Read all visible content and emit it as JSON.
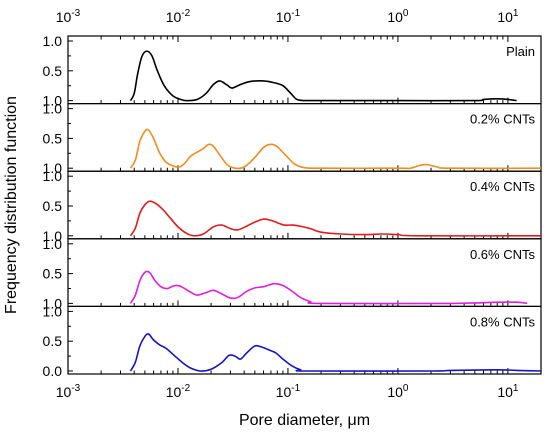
{
  "chart_data": {
    "type": "line",
    "xlabel": "Pore diameter, μm",
    "ylabel": "Frequency distribution function",
    "xscale": "log",
    "xlim": [
      0.001,
      20
    ],
    "ylim": [
      0,
      1.0
    ],
    "x_ticks": [
      {
        "base": "10",
        "exp": "-3"
      },
      {
        "base": "10",
        "exp": "-2"
      },
      {
        "base": "10",
        "exp": "-1"
      },
      {
        "base": "10",
        "exp": "0"
      },
      {
        "base": "10",
        "exp": "1"
      }
    ],
    "y_ticks": [
      "1.0",
      "0.5",
      "1.0"
    ],
    "y_ticks_bottom": [
      "1.0",
      "0.5",
      "0.0"
    ],
    "grid": false,
    "panels": [
      {
        "label": "Plain",
        "color": "#000000",
        "points": [
          [
            0.0037,
            0
          ],
          [
            0.004,
            0.12
          ],
          [
            0.0043,
            0.45
          ],
          [
            0.0047,
            0.74
          ],
          [
            0.0052,
            0.83
          ],
          [
            0.0058,
            0.75
          ],
          [
            0.0065,
            0.5
          ],
          [
            0.0075,
            0.25
          ],
          [
            0.009,
            0.08
          ],
          [
            0.011,
            0.01
          ],
          [
            0.0125,
            0
          ],
          [
            0.015,
            0.02
          ],
          [
            0.018,
            0.12
          ],
          [
            0.021,
            0.27
          ],
          [
            0.024,
            0.33
          ],
          [
            0.028,
            0.26
          ],
          [
            0.031,
            0.21
          ],
          [
            0.036,
            0.26
          ],
          [
            0.045,
            0.32
          ],
          [
            0.06,
            0.33
          ],
          [
            0.075,
            0.3
          ],
          [
            0.09,
            0.25
          ],
          [
            0.105,
            0.13
          ],
          [
            0.118,
            0.03
          ],
          [
            0.13,
            0.005
          ],
          [
            0.16,
            0
          ],
          [
            0.3,
            0
          ],
          [
            1.0,
            0
          ],
          [
            5.0,
            0
          ],
          [
            6.0,
            0.02
          ],
          [
            8.0,
            0.03
          ],
          [
            10,
            0.02
          ],
          [
            12,
            0
          ]
        ]
      },
      {
        "label": "0.2% CNTs",
        "color": "#f28c1c",
        "points": [
          [
            0.0037,
            0
          ],
          [
            0.0041,
            0.14
          ],
          [
            0.0045,
            0.45
          ],
          [
            0.005,
            0.62
          ],
          [
            0.0054,
            0.64
          ],
          [
            0.006,
            0.5
          ],
          [
            0.0068,
            0.26
          ],
          [
            0.0078,
            0.1
          ],
          [
            0.009,
            0.04
          ],
          [
            0.0103,
            0.02
          ],
          [
            0.0115,
            0.08
          ],
          [
            0.013,
            0.2
          ],
          [
            0.015,
            0.27
          ],
          [
            0.017,
            0.33
          ],
          [
            0.019,
            0.4
          ],
          [
            0.021,
            0.37
          ],
          [
            0.024,
            0.22
          ],
          [
            0.028,
            0.06
          ],
          [
            0.033,
            0
          ],
          [
            0.04,
            0.02
          ],
          [
            0.05,
            0.18
          ],
          [
            0.06,
            0.35
          ],
          [
            0.07,
            0.4
          ],
          [
            0.08,
            0.36
          ],
          [
            0.095,
            0.22
          ],
          [
            0.115,
            0.07
          ],
          [
            0.14,
            0.01
          ],
          [
            0.2,
            0
          ],
          [
            1.0,
            0
          ],
          [
            1.3,
            0
          ],
          [
            1.6,
            0.05
          ],
          [
            1.85,
            0.06
          ],
          [
            2.3,
            0.02
          ],
          [
            3.0,
            0
          ],
          [
            20,
            0
          ]
        ]
      },
      {
        "label": "0.4% CNTs",
        "color": "#e41a1c",
        "points": [
          [
            0.0037,
            0
          ],
          [
            0.0041,
            0.13
          ],
          [
            0.0045,
            0.38
          ],
          [
            0.005,
            0.52
          ],
          [
            0.0055,
            0.58
          ],
          [
            0.0062,
            0.55
          ],
          [
            0.0072,
            0.45
          ],
          [
            0.0085,
            0.3
          ],
          [
            0.01,
            0.15
          ],
          [
            0.012,
            0.04
          ],
          [
            0.014,
            0
          ],
          [
            0.017,
            0.03
          ],
          [
            0.021,
            0.15
          ],
          [
            0.025,
            0.18
          ],
          [
            0.03,
            0.12
          ],
          [
            0.035,
            0.1
          ],
          [
            0.042,
            0.16
          ],
          [
            0.05,
            0.23
          ],
          [
            0.06,
            0.28
          ],
          [
            0.07,
            0.26
          ],
          [
            0.08,
            0.22
          ],
          [
            0.092,
            0.18
          ],
          [
            0.11,
            0.18
          ],
          [
            0.13,
            0.16
          ],
          [
            0.16,
            0.12
          ],
          [
            0.2,
            0.06
          ],
          [
            0.3,
            0.03
          ],
          [
            0.5,
            0.02
          ],
          [
            0.7,
            0.03
          ],
          [
            1.0,
            0.02
          ],
          [
            1.5,
            0
          ],
          [
            20,
            0
          ]
        ]
      },
      {
        "label": "0.6% CNTs",
        "color": "#e01ee0",
        "points": [
          [
            0.0037,
            0
          ],
          [
            0.0041,
            0.14
          ],
          [
            0.0045,
            0.38
          ],
          [
            0.005,
            0.52
          ],
          [
            0.0055,
            0.52
          ],
          [
            0.0062,
            0.38
          ],
          [
            0.007,
            0.28
          ],
          [
            0.008,
            0.25
          ],
          [
            0.009,
            0.29
          ],
          [
            0.01,
            0.3
          ],
          [
            0.011,
            0.27
          ],
          [
            0.013,
            0.19
          ],
          [
            0.015,
            0.14
          ],
          [
            0.018,
            0.18
          ],
          [
            0.021,
            0.22
          ],
          [
            0.025,
            0.16
          ],
          [
            0.03,
            0.09
          ],
          [
            0.035,
            0.1
          ],
          [
            0.042,
            0.2
          ],
          [
            0.05,
            0.26
          ],
          [
            0.06,
            0.28
          ],
          [
            0.075,
            0.33
          ],
          [
            0.09,
            0.3
          ],
          [
            0.11,
            0.2
          ],
          [
            0.13,
            0.1
          ],
          [
            0.16,
            0.03
          ],
          [
            0.2,
            0
          ],
          [
            3.0,
            0
          ],
          [
            8.0,
            0.02
          ],
          [
            12,
            0.02
          ],
          [
            15,
            0
          ]
        ]
      },
      {
        "label": "0.8% CNTs",
        "color": "#1414c8",
        "points": [
          [
            0.0037,
            0
          ],
          [
            0.0041,
            0.15
          ],
          [
            0.0045,
            0.42
          ],
          [
            0.005,
            0.58
          ],
          [
            0.0054,
            0.62
          ],
          [
            0.006,
            0.52
          ],
          [
            0.0068,
            0.44
          ],
          [
            0.0078,
            0.38
          ],
          [
            0.009,
            0.28
          ],
          [
            0.011,
            0.14
          ],
          [
            0.013,
            0.05
          ],
          [
            0.016,
            0
          ],
          [
            0.02,
            0.03
          ],
          [
            0.025,
            0.14
          ],
          [
            0.029,
            0.26
          ],
          [
            0.033,
            0.25
          ],
          [
            0.037,
            0.2
          ],
          [
            0.042,
            0.3
          ],
          [
            0.05,
            0.42
          ],
          [
            0.058,
            0.4
          ],
          [
            0.068,
            0.35
          ],
          [
            0.078,
            0.3
          ],
          [
            0.09,
            0.2
          ],
          [
            0.11,
            0.08
          ],
          [
            0.13,
            0.02
          ],
          [
            0.15,
            0
          ],
          [
            2.0,
            0
          ],
          [
            3.0,
            0.01
          ],
          [
            8.0,
            0.02
          ],
          [
            12,
            0.01
          ],
          [
            20,
            0
          ]
        ]
      }
    ]
  }
}
